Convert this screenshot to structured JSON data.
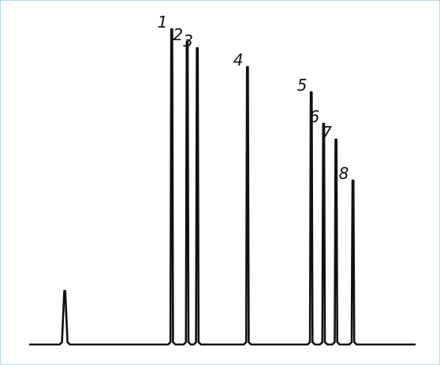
{
  "chart_data": {
    "type": "line",
    "title": "",
    "xlabel": "",
    "ylabel": "",
    "grid": false,
    "legend": "none",
    "colors": {
      "trace": "#111111",
      "frame": "#b9d6e6"
    },
    "y_baseline": 0,
    "y_max_fraction": 1.0,
    "solvent_peak": {
      "x": 0.092,
      "height": 0.17
    },
    "peaks": [
      {
        "label": "1",
        "x": 0.369,
        "height": 1.0
      },
      {
        "label": "2",
        "x": 0.409,
        "height": 0.96
      },
      {
        "label": "3",
        "x": 0.435,
        "height": 0.94
      },
      {
        "label": "4",
        "x": 0.565,
        "height": 0.88
      },
      {
        "label": "5",
        "x": 0.73,
        "height": 0.8
      },
      {
        "label": "6",
        "x": 0.762,
        "height": 0.7
      },
      {
        "label": "7",
        "x": 0.794,
        "height": 0.65
      },
      {
        "label": "8",
        "x": 0.838,
        "height": 0.52
      }
    ]
  }
}
